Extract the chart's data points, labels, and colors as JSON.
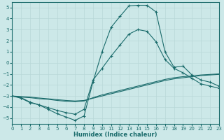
{
  "background_color": "#cce8e8",
  "grid_color": "#b8d8d8",
  "line_color": "#1a6b6b",
  "xlabel": "Humidex (Indice chaleur)",
  "xlim": [
    0,
    23
  ],
  "ylim": [
    -5.5,
    5.5
  ],
  "yticks": [
    -5,
    -4,
    -3,
    -2,
    -1,
    0,
    1,
    2,
    3,
    4,
    5
  ],
  "xticks": [
    0,
    1,
    2,
    3,
    4,
    5,
    6,
    7,
    8,
    9,
    10,
    11,
    12,
    13,
    14,
    15,
    16,
    17,
    18,
    19,
    20,
    21,
    22,
    23
  ],
  "curve1_x": [
    0,
    1,
    2,
    3,
    4,
    5,
    6,
    7,
    8,
    9,
    10,
    11,
    12,
    13,
    14,
    15,
    16,
    17,
    18,
    19,
    20,
    21,
    22,
    23
  ],
  "curve1_y": [
    -3.0,
    -3.2,
    -3.6,
    -3.8,
    -4.2,
    -4.6,
    -4.9,
    -5.2,
    -4.8,
    -1.7,
    1.0,
    3.2,
    4.2,
    5.15,
    5.2,
    5.2,
    4.6,
    1.0,
    -0.4,
    -0.3,
    -1.1,
    -1.55,
    -1.75,
    -2.1
  ],
  "curve2_x": [
    0,
    1,
    2,
    3,
    4,
    5,
    6,
    7,
    8,
    9,
    10,
    11,
    12,
    13,
    14,
    15,
    16,
    17,
    18,
    19,
    20,
    21,
    22,
    23
  ],
  "curve2_y": [
    -3.0,
    -3.15,
    -3.55,
    -3.8,
    -4.05,
    -4.3,
    -4.5,
    -4.65,
    -4.2,
    -1.55,
    -0.5,
    0.6,
    1.6,
    2.6,
    3.0,
    2.85,
    1.9,
    0.3,
    -0.5,
    -0.9,
    -1.4,
    -1.9,
    -2.1,
    -2.3
  ],
  "curve3_x": [
    0,
    1,
    2,
    3,
    4,
    5,
    6,
    7,
    8,
    9,
    10,
    11,
    12,
    13,
    14,
    15,
    16,
    17,
    18,
    19,
    20,
    21,
    22,
    23
  ],
  "curve3_y": [
    -3.0,
    -3.1,
    -3.15,
    -3.25,
    -3.3,
    -3.4,
    -3.48,
    -3.52,
    -3.45,
    -3.15,
    -2.9,
    -2.7,
    -2.5,
    -2.3,
    -2.1,
    -1.9,
    -1.7,
    -1.5,
    -1.35,
    -1.25,
    -1.2,
    -1.1,
    -1.05,
    -1.0
  ],
  "curve4_x": [
    0,
    1,
    2,
    3,
    4,
    5,
    6,
    7,
    8,
    9,
    10,
    11,
    12,
    13,
    14,
    15,
    16,
    17,
    18,
    19,
    20,
    21,
    22,
    23
  ],
  "curve4_y": [
    -3.0,
    -3.05,
    -3.1,
    -3.18,
    -3.25,
    -3.33,
    -3.4,
    -3.45,
    -3.4,
    -3.2,
    -3.0,
    -2.8,
    -2.6,
    -2.4,
    -2.2,
    -2.0,
    -1.8,
    -1.6,
    -1.45,
    -1.35,
    -1.25,
    -1.15,
    -1.1,
    -1.05
  ]
}
